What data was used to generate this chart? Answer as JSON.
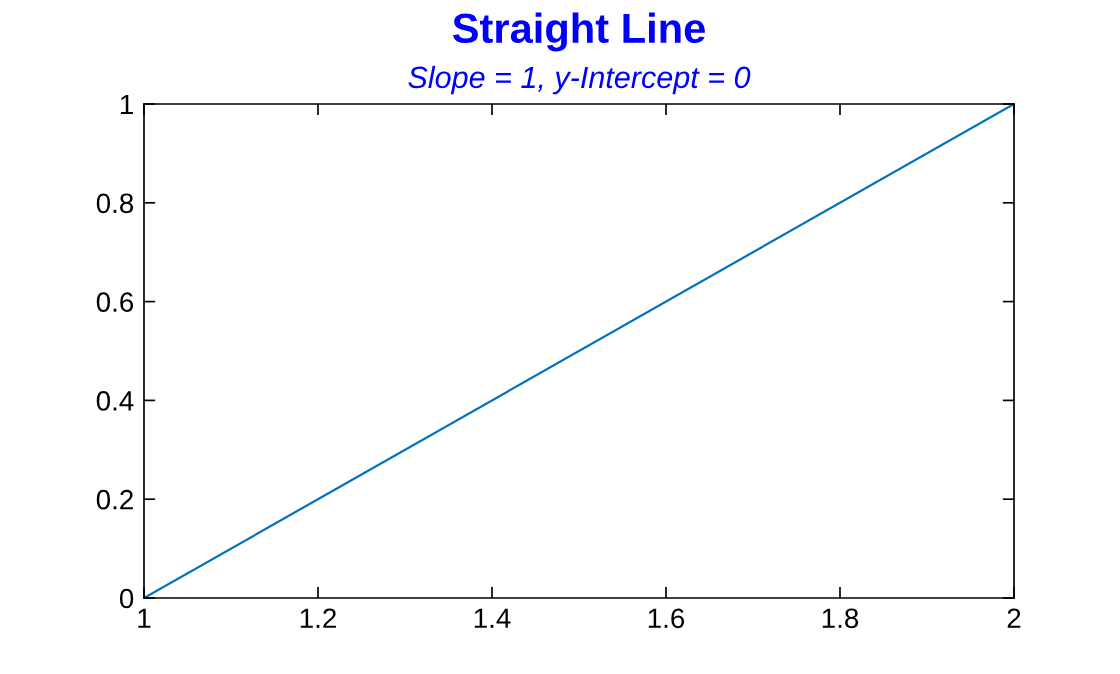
{
  "chart_data": {
    "type": "line",
    "title": "Straight Line",
    "subtitle": "Slope = 1, y-Intercept = 0",
    "x": [
      1,
      2
    ],
    "series": [
      {
        "color": "#0072bd",
        "values": [
          0,
          1
        ]
      }
    ],
    "xlim": [
      1,
      2
    ],
    "ylim": [
      0,
      1
    ],
    "xticks": [
      1,
      1.2,
      1.4,
      1.6,
      1.8,
      2
    ],
    "yticks": [
      0,
      0.2,
      0.4,
      0.6,
      0.8,
      1
    ],
    "grid": false,
    "legend": false,
    "marker": "none",
    "line_style": "solid"
  }
}
